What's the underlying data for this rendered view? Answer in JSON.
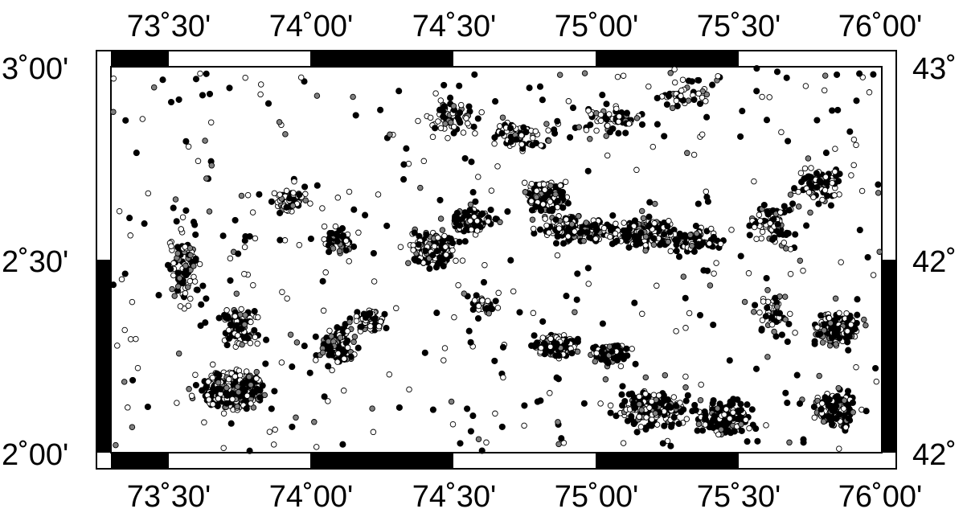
{
  "map": {
    "type": "epicenter-scatter-map",
    "lon_range": [
      73.1667,
      75.9667
    ],
    "lat_range": [
      42.0,
      42.8333
    ],
    "top_labels": [
      "73˚30'",
      "74˚00'",
      "74˚30'",
      "75˚00'",
      "75˚30'",
      "76˚00'"
    ],
    "bottom_labels": [
      "73˚30'",
      "74˚00'",
      "74˚30'",
      "75˚00'",
      "75˚30'",
      "76˚00'"
    ],
    "left_labels": [
      "3˚00'",
      "2˚30'",
      "2˚00'"
    ],
    "right_labels": [
      "43˚",
      "42˚",
      "42˚"
    ],
    "marker_colors": {
      "black": "#000000",
      "gray": "#808080",
      "white": "#ffffff"
    },
    "grid": false
  }
}
